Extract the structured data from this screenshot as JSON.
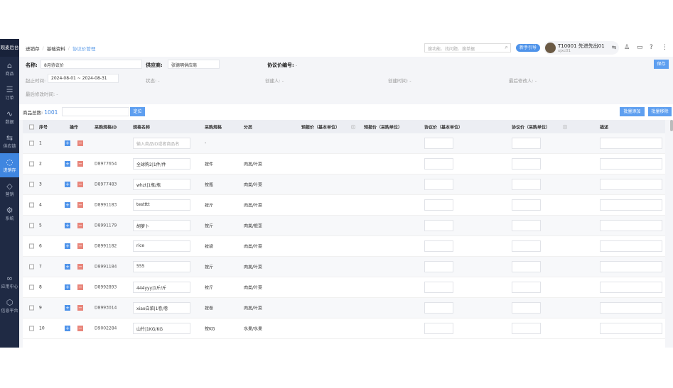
{
  "app": {
    "logo": "观麦后台"
  },
  "sidebar": {
    "items": [
      {
        "label": "商品",
        "icon": "basket-icon",
        "glyph": "⌂"
      },
      {
        "label": "订单",
        "icon": "order-icon",
        "glyph": "☰"
      },
      {
        "label": "数据",
        "icon": "chart-icon",
        "glyph": "∿"
      },
      {
        "label": "供应链",
        "icon": "link-icon",
        "glyph": "⇆"
      },
      {
        "label": "进销存",
        "icon": "inventory-icon",
        "glyph": "◌"
      },
      {
        "label": "营销",
        "icon": "tag-icon",
        "glyph": "◇"
      },
      {
        "label": "系统",
        "icon": "gear-icon",
        "glyph": "⚙"
      },
      {
        "label": "应用中心",
        "icon": "apps-icon",
        "glyph": "∞"
      },
      {
        "label": "信息平台",
        "icon": "cube-icon",
        "glyph": "⬡"
      }
    ],
    "active": 4
  },
  "breadcrumb": [
    "进销存",
    "基础资料",
    "协议价管理"
  ],
  "header": {
    "search_placeholder": "搜功能、找问题、搜单据",
    "guide": "新手引导",
    "user_name": "T10001 先进先出01",
    "user_id": "xjxc01",
    "active_color": "#3f86e0"
  },
  "form": {
    "name_label": "名称:",
    "name_value": "8月协议价",
    "supplier_label": "供应商:",
    "supplier_value": "张德明供应商",
    "code_label": "协议价编号:",
    "code_value": "-",
    "period_label": "起止时间:",
    "period_value": "2024-08-01 ~ 2024-08-31",
    "status_label": "状态:",
    "status_value": "-",
    "creator_label": "创建人:",
    "creator_value": "-",
    "created_label": "创建时间:",
    "created_value": "-",
    "modifier_label": "最后修改人:",
    "modifier_value": "-",
    "modified_label": "最后修改时间:",
    "modified_value": "-",
    "save": "保存"
  },
  "toolbar": {
    "total_label": "商品总数:",
    "total": "1001",
    "locate": "定位",
    "batch_add": "批量添加",
    "batch_remove": "批量移除"
  },
  "table": {
    "headers": [
      "序号",
      "操作",
      "采购规格ID",
      "规格名称",
      "采购规格",
      "分类",
      "预报价（基本单位）",
      "预报价（采购单位）",
      "协议价（基本单位）",
      "协议价（采购单位）",
      "描述"
    ],
    "placeholder": "输入商品ID或者商品名",
    "rows": [
      {
        "no": "1",
        "id": "",
        "name": "",
        "spec": "-",
        "cat": ""
      },
      {
        "no": "2",
        "id": "D8977654",
        "name": "全球购2|1件/件",
        "spec": "按件",
        "cat": "肉类/叶菜"
      },
      {
        "no": "3",
        "id": "D8977483",
        "name": "whzt|1瓶/瓶",
        "spec": "按瓶",
        "cat": "肉类/叶菜"
      },
      {
        "no": "4",
        "id": "D8991183",
        "name": "testttt",
        "spec": "按斤",
        "cat": "肉类/叶菜"
      },
      {
        "no": "5",
        "id": "D8991179",
        "name": "胡萝卜",
        "spec": "按斤",
        "cat": "肉类/根茎"
      },
      {
        "no": "6",
        "id": "D8991182",
        "name": "rice",
        "spec": "按袋",
        "cat": "肉类/叶菜"
      },
      {
        "no": "7",
        "id": "D8991184",
        "name": "555",
        "spec": "按斤",
        "cat": "肉类/叶菜"
      },
      {
        "no": "8",
        "id": "D8992893",
        "name": "444yyy|1斤/斤",
        "spec": "按斤",
        "cat": "肉类/叶菜"
      },
      {
        "no": "9",
        "id": "D8993014",
        "name": "xiao白菜|1卷/卷",
        "spec": "按卷",
        "cat": "肉类/叶菜"
      },
      {
        "no": "10",
        "id": "D9002284",
        "name": "山竹|1KG/KG",
        "spec": "按KG",
        "cat": "水果/水果"
      }
    ]
  }
}
